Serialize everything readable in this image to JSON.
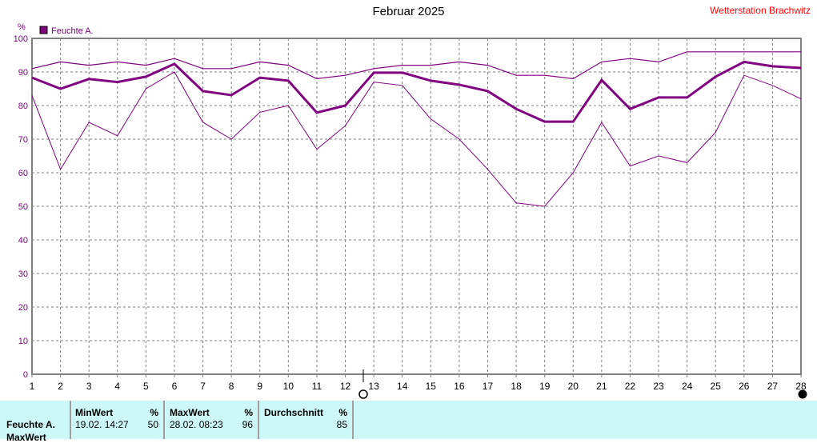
{
  "title": "Februar 2025",
  "station": "Wetterstation Brachwitz",
  "chart_data": {
    "type": "line",
    "title": "Februar 2025",
    "ylabel": "%",
    "ylim": [
      0,
      100
    ],
    "yticks": [
      0,
      10,
      20,
      30,
      40,
      50,
      60,
      70,
      80,
      90,
      100
    ],
    "x": [
      1,
      2,
      3,
      4,
      5,
      6,
      7,
      8,
      9,
      10,
      11,
      12,
      13,
      14,
      15,
      16,
      17,
      18,
      19,
      20,
      21,
      22,
      23,
      24,
      25,
      26,
      27,
      28
    ],
    "grid": true,
    "legend": "top-left",
    "legend_entry": "Feuchte A.",
    "color": "#800080",
    "series": [
      {
        "values": [
          91,
          93,
          92,
          93,
          92,
          94,
          91,
          91,
          93,
          92,
          88,
          89,
          91,
          92,
          92,
          93,
          92,
          89,
          89,
          88,
          93,
          94,
          93,
          96,
          96,
          96,
          96,
          96
        ]
      },
      {
        "values": [
          88.3,
          85,
          87.9,
          87,
          88.6,
          92.4,
          84.3,
          83.1,
          88.3,
          87.4,
          77.9,
          80,
          89.8,
          89.8,
          87.4,
          86.2,
          84.3,
          79,
          75.2,
          75.2,
          87.6,
          79,
          82.4,
          82.4,
          88.6,
          93,
          91.7,
          91.2
        ]
      },
      {
        "values": [
          83,
          61,
          75,
          71,
          85,
          90,
          75,
          70,
          78,
          80,
          67,
          74,
          87,
          86,
          76,
          70,
          61,
          51,
          50,
          60,
          75,
          62,
          65,
          63,
          72,
          89,
          86,
          82
        ]
      }
    ]
  },
  "table": {
    "row_label": "Feuchte A.",
    "row_label2": "MaxWert",
    "min": {
      "header": "MinWert",
      "unit": "%",
      "time": "19.02.  14:27",
      "value": "50"
    },
    "max": {
      "header": "MaxWert",
      "unit": "%",
      "time": "28.02.  08:23",
      "value": "96"
    },
    "avg": {
      "header": "Durchschnitt",
      "unit": "%",
      "value": "85"
    }
  }
}
